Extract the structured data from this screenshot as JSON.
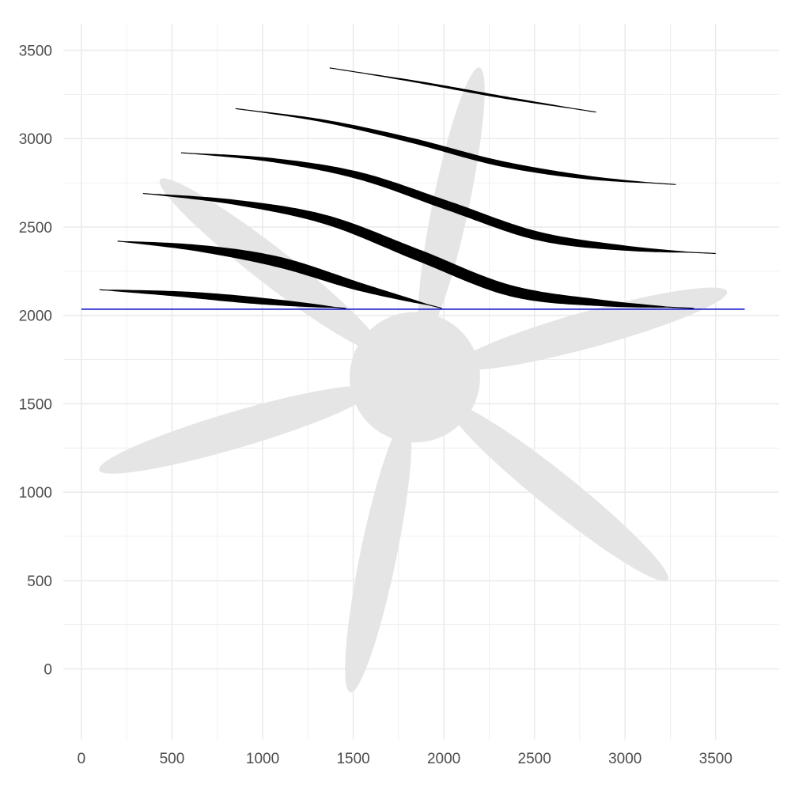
{
  "chart_data": {
    "type": "scatter",
    "title": "",
    "xlabel": "",
    "ylabel": "",
    "xlim": [
      -100,
      3850
    ],
    "ylim": [
      -400,
      3650
    ],
    "grid": true,
    "x_ticks": [
      "0",
      "500",
      "1000",
      "1500",
      "2000",
      "2500",
      "3000",
      "3500"
    ],
    "y_ticks": [
      "0",
      "500",
      "1000",
      "1500",
      "2000",
      "2500",
      "3000",
      "3500"
    ],
    "reference_line": {
      "y": 2035,
      "x_range": [
        0,
        3660
      ],
      "color": "#0000cc"
    },
    "background_shape": {
      "kind": "propeller",
      "center": [
        1840,
        1650
      ],
      "hub_radius": 360,
      "color": "#e5e5e5",
      "blades": [
        {
          "tip": [
            2200,
            3420
          ]
        },
        {
          "tip": [
            3580,
            2140
          ]
        },
        {
          "tip": [
            3250,
            490
          ]
        },
        {
          "tip": [
            1480,
            -150
          ]
        },
        {
          "tip": [
            80,
            1120
          ]
        },
        {
          "tip": [
            420,
            2780
          ]
        }
      ]
    },
    "series": [
      {
        "x_start": 1370,
        "x_end": 2840,
        "y": [
          3400,
          3320,
          3230,
          3150
        ],
        "max_thickness": 20
      },
      {
        "x_start": 850,
        "x_end": 3280,
        "y": [
          3170,
          3100,
          2990,
          2860,
          2780,
          2740
        ],
        "max_thickness": 45
      },
      {
        "x_start": 550,
        "x_end": 3500,
        "y": [
          2920,
          2880,
          2790,
          2620,
          2450,
          2380,
          2350
        ],
        "max_thickness": 75
      },
      {
        "x_start": 340,
        "x_end": 3380,
        "y": [
          2690,
          2640,
          2540,
          2340,
          2140,
          2070,
          2040
        ],
        "max_thickness": 95
      },
      {
        "x_start": 200,
        "x_end": 1990,
        "y": [
          2420,
          2380,
          2300,
          2160,
          2040
        ],
        "max_thickness": 85
      },
      {
        "x_start": 100,
        "x_end": 1460,
        "y": [
          2145,
          2120,
          2080,
          2040
        ],
        "max_thickness": 55
      }
    ],
    "colors": {
      "marks": "#000000",
      "grid": "#ebebeb",
      "background_shape": "#e5e5e5",
      "reference_line": "#0000cc",
      "tick_text": "#4d4d4d"
    }
  }
}
